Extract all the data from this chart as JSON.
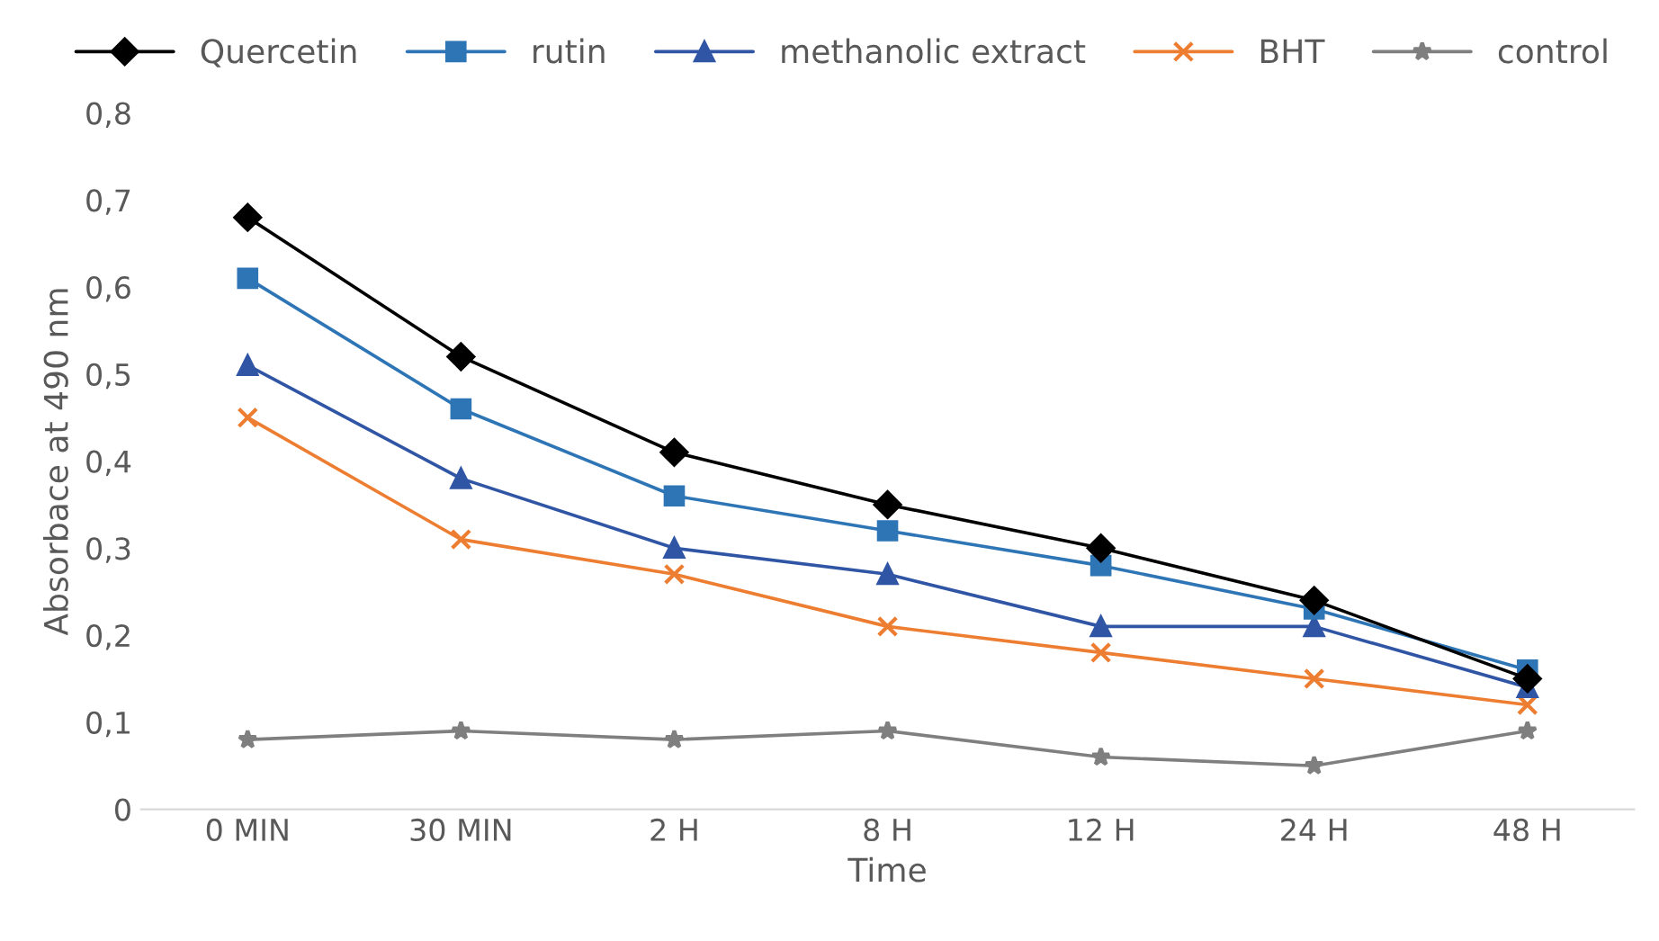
{
  "chart_data": {
    "type": "line",
    "xlabel": "Time",
    "ylabel": "Absorbace at 490 nm",
    "categories": [
      "0 MIN",
      "30 MIN",
      "2 H",
      "8 H",
      "12 H",
      "24 H",
      "48 H"
    ],
    "series": [
      {
        "name": "Quercetin",
        "color": "#000000",
        "marker": "diamond",
        "values": [
          0.68,
          0.52,
          0.41,
          0.35,
          0.3,
          0.24,
          0.15
        ]
      },
      {
        "name": "rutin",
        "color": "#2e75b6",
        "marker": "square",
        "values": [
          0.61,
          0.46,
          0.36,
          0.32,
          0.28,
          0.23,
          0.16
        ]
      },
      {
        "name": "methanolic extract",
        "color": "#2f55a4",
        "marker": "triangle",
        "values": [
          0.51,
          0.38,
          0.3,
          0.27,
          0.21,
          0.21,
          0.14
        ]
      },
      {
        "name": "BHT",
        "color": "#ed7d31",
        "marker": "cross",
        "values": [
          0.45,
          0.31,
          0.27,
          0.21,
          0.18,
          0.15,
          0.12
        ]
      },
      {
        "name": "control",
        "color": "#7f7f7f",
        "marker": "star",
        "values": [
          0.08,
          0.09,
          0.08,
          0.09,
          0.06,
          0.05,
          0.09
        ]
      }
    ],
    "ylim": [
      0,
      0.8
    ],
    "yticks": [
      {
        "value": 0,
        "label": "0"
      },
      {
        "value": 0.1,
        "label": "0,1"
      },
      {
        "value": 0.2,
        "label": "0,2"
      },
      {
        "value": 0.3,
        "label": "0,3"
      },
      {
        "value": 0.4,
        "label": "0,4"
      },
      {
        "value": 0.5,
        "label": "0,5"
      },
      {
        "value": 0.6,
        "label": "0,6"
      },
      {
        "value": 0.7,
        "label": "0,7"
      },
      {
        "value": 0.8,
        "label": "0,8"
      }
    ],
    "grid": false,
    "legend": "top",
    "line_style": "solid"
  }
}
